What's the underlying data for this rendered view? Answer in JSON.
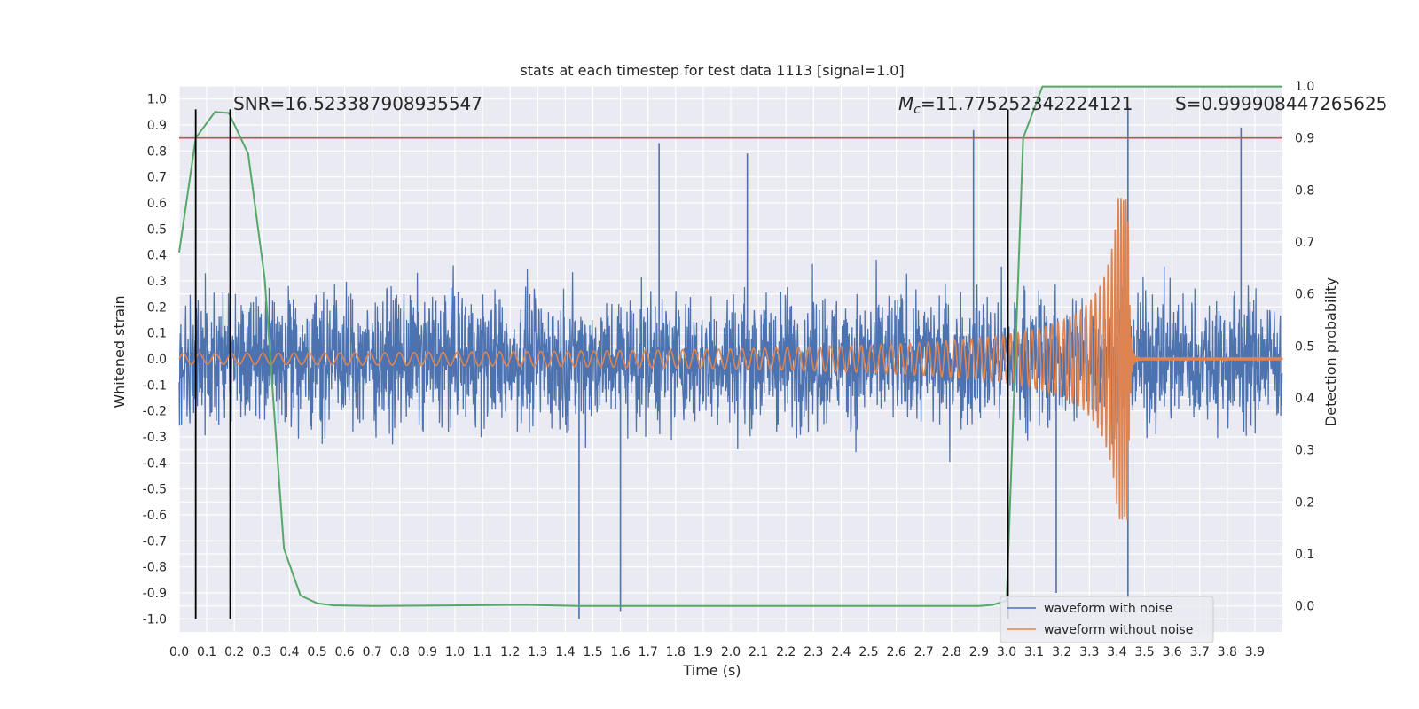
{
  "chart_data": {
    "type": "line",
    "title": "stats at each timestep for test data 1113 [signal=1.0]",
    "xlabel": "Time (s)",
    "ylabel_left": "Whitened strain",
    "ylabel_right": "Detection probability",
    "xlim": [
      0.0,
      4.0
    ],
    "ylim_left": [
      -1.05,
      1.05
    ],
    "ylim_right": [
      -0.05,
      1.0
    ],
    "x_ticks": [
      "0.0",
      "0.1",
      "0.2",
      "0.3",
      "0.4",
      "0.5",
      "0.6",
      "0.7",
      "0.8",
      "0.9",
      "1.0",
      "1.1",
      "1.2",
      "1.3",
      "1.4",
      "1.5",
      "1.6",
      "1.7",
      "1.8",
      "1.9",
      "2.0",
      "2.1",
      "2.2",
      "2.3",
      "2.4",
      "2.5",
      "2.6",
      "2.7",
      "2.8",
      "2.9",
      "3.0",
      "3.1",
      "3.2",
      "3.3",
      "3.4",
      "3.5",
      "3.6",
      "3.7",
      "3.8",
      "3.9"
    ],
    "y_ticks_left": [
      "1.0",
      "0.9",
      "0.8",
      "0.7",
      "0.6",
      "0.5",
      "0.4",
      "0.3",
      "0.2",
      "0.1",
      "0.0",
      "-0.1",
      "-0.2",
      "-0.3",
      "-0.4",
      "-0.5",
      "-0.6",
      "-0.7",
      "-0.8",
      "-0.9",
      "-1.0"
    ],
    "y_ticks_right": [
      "1.0",
      "0.9",
      "0.8",
      "0.7",
      "0.6",
      "0.5",
      "0.4",
      "0.3",
      "0.2",
      "0.1",
      "0.0"
    ],
    "grid": true,
    "legend_position": "bottom-right",
    "series": [
      {
        "name": "waveform with noise",
        "color": "#4c72b0",
        "description_samples": {
          "amplitude_typical": 0.3,
          "peaks": [
            {
              "x": 1.45,
              "y": -1.0
            },
            {
              "x": 1.6,
              "y": -0.97
            },
            {
              "x": 1.74,
              "y": 0.83
            },
            {
              "x": 2.06,
              "y": 0.79
            },
            {
              "x": 2.88,
              "y": 0.88
            },
            {
              "x": 3.44,
              "y": 0.97
            },
            {
              "x": 3.44,
              "y": -0.92
            },
            {
              "x": 3.85,
              "y": 0.89
            },
            {
              "x": 3.18,
              "y": -0.9
            }
          ]
        }
      },
      {
        "name": "waveform without noise",
        "color": "#dd8452",
        "chirp": {
          "amplitude_start": 0.02,
          "amplitude_peak": 0.62,
          "frequency_start_hz": 17,
          "frequency_peak_hz": 110,
          "merger_time": 3.44,
          "ringdown_end": 3.47
        }
      },
      {
        "color": "#55a868",
        "axis": "right",
        "points": [
          [
            0.0,
            0.68
          ],
          [
            0.06,
            0.9
          ],
          [
            0.13,
            0.95
          ],
          [
            0.18,
            0.948
          ],
          [
            0.25,
            0.87
          ],
          [
            0.31,
            0.63
          ],
          [
            0.38,
            0.11
          ],
          [
            0.44,
            0.02
          ],
          [
            0.5,
            0.005
          ],
          [
            0.56,
            0.001
          ],
          [
            0.7,
            0.0
          ],
          [
            1.25,
            0.002
          ],
          [
            1.45,
            0.0
          ],
          [
            2.0,
            0.0
          ],
          [
            2.5,
            0.0
          ],
          [
            2.9,
            0.0
          ],
          [
            2.95,
            0.002
          ],
          [
            3.0,
            0.01
          ],
          [
            3.06,
            0.9
          ],
          [
            3.13,
            0.999
          ],
          [
            3.5,
            0.999
          ],
          [
            4.0,
            0.999
          ]
        ]
      }
    ],
    "threshold_line": {
      "axis": "right",
      "value": 0.9,
      "color": "#c44e52"
    },
    "vertical_lines": [
      0.06,
      0.185,
      3.005
    ],
    "annotations": {
      "snr": "SNR=16.523387908935547",
      "mc_symbol": "M",
      "mc_sub": "c",
      "mc_value": "=11.775252342224121",
      "s": "S=0.9999084472656​25"
    }
  }
}
